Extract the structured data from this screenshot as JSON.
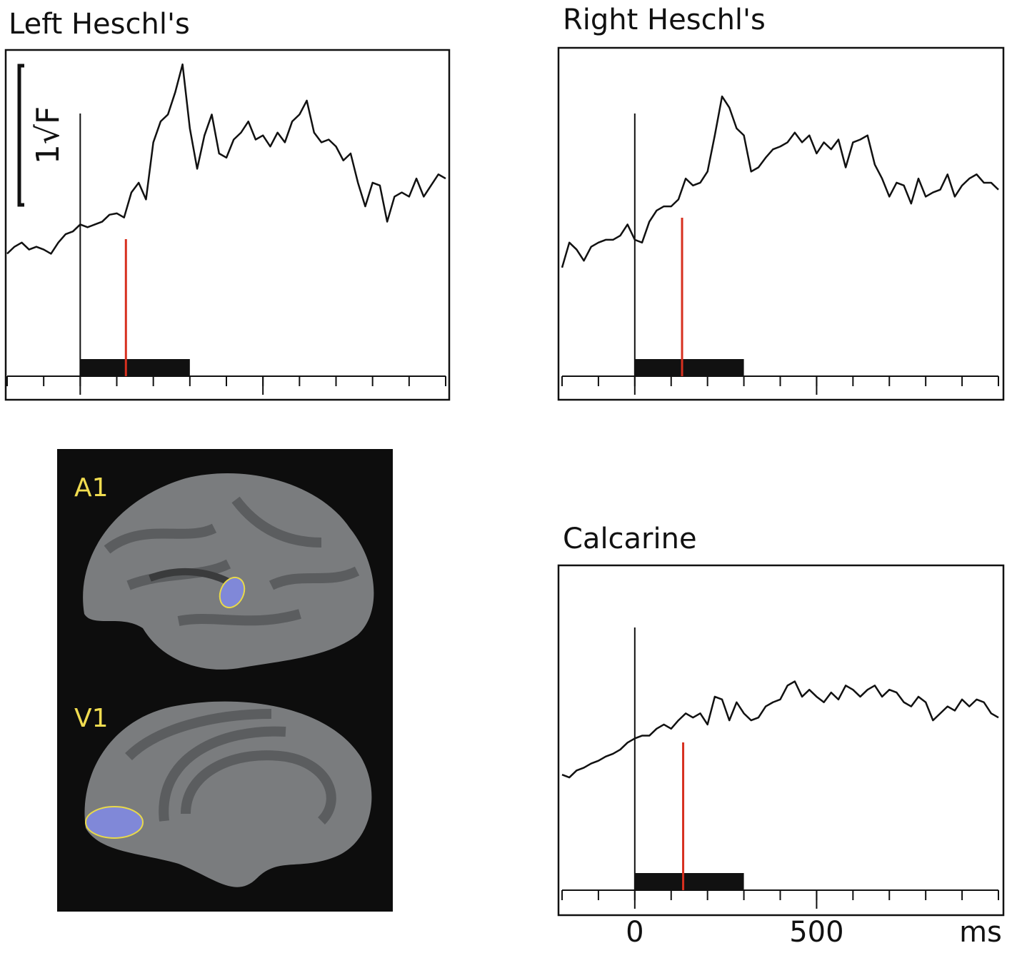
{
  "chart_data": [
    {
      "type": "line",
      "title": "Left Heschl's",
      "x": [
        -200,
        -180,
        -160,
        -140,
        -120,
        -100,
        -80,
        -60,
        -40,
        -20,
        0,
        20,
        40,
        60,
        80,
        100,
        120,
        140,
        160,
        180,
        200,
        220,
        240,
        260,
        280,
        300,
        320,
        340,
        360,
        380,
        400,
        420,
        440,
        460,
        480,
        500,
        520,
        540,
        560,
        580,
        600,
        620,
        640,
        660,
        680,
        700,
        720,
        740,
        760,
        780,
        800,
        820,
        840,
        860,
        880,
        900,
        920,
        940,
        960,
        980,
        1000
      ],
      "series": [
        {
          "color": "#111111",
          "values": [
            0.88,
            0.93,
            0.96,
            0.91,
            0.93,
            0.91,
            0.88,
            0.96,
            1.02,
            1.04,
            1.09,
            1.07,
            1.09,
            1.11,
            1.16,
            1.17,
            1.14,
            1.32,
            1.39,
            1.27,
            1.68,
            1.83,
            1.88,
            2.04,
            2.24,
            1.78,
            1.49,
            1.73,
            1.88,
            1.6,
            1.57,
            1.7,
            1.75,
            1.83,
            1.7,
            1.73,
            1.65,
            1.75,
            1.68,
            1.83,
            1.88,
            1.98,
            1.75,
            1.68,
            1.7,
            1.65,
            1.55,
            1.6,
            1.39,
            1.22,
            1.39,
            1.37,
            1.11,
            1.29,
            1.32,
            1.29,
            1.42,
            1.29,
            1.37,
            1.45,
            1.42
          ]
        }
      ],
      "xlim": [
        -200,
        1000
      ],
      "ylim": [
        0,
        2.34
      ],
      "xticks": [
        -200,
        -100,
        0,
        100,
        200,
        300,
        400,
        500,
        600,
        700,
        800,
        900,
        1000
      ],
      "major_xticks": [
        0,
        500
      ],
      "major_tick_labels": false,
      "stimulus": [
        0,
        300
      ],
      "marker": 125,
      "marker_color": "#d7301f",
      "scale_bar": {
        "value": 1,
        "label": "1√F"
      }
    },
    {
      "type": "line",
      "title": "Right Heschl's",
      "x": [
        -200,
        -180,
        -160,
        -140,
        -120,
        -100,
        -80,
        -60,
        -40,
        -20,
        0,
        20,
        40,
        60,
        80,
        100,
        120,
        140,
        160,
        180,
        200,
        220,
        240,
        260,
        280,
        300,
        320,
        340,
        360,
        380,
        400,
        420,
        440,
        460,
        480,
        500,
        520,
        540,
        560,
        580,
        600,
        620,
        640,
        660,
        680,
        700,
        720,
        740,
        760,
        780,
        800,
        820,
        840,
        860,
        880,
        900,
        920,
        940,
        960,
        980,
        1000
      ],
      "series": [
        {
          "color": "#111111",
          "values": [
            0.78,
            0.96,
            0.91,
            0.83,
            0.93,
            0.96,
            0.98,
            0.98,
            1.01,
            1.09,
            0.98,
            0.96,
            1.11,
            1.19,
            1.22,
            1.22,
            1.27,
            1.42,
            1.37,
            1.39,
            1.47,
            1.73,
            2.01,
            1.93,
            1.78,
            1.73,
            1.47,
            1.5,
            1.57,
            1.63,
            1.65,
            1.68,
            1.75,
            1.68,
            1.73,
            1.6,
            1.68,
            1.63,
            1.7,
            1.5,
            1.68,
            1.7,
            1.73,
            1.52,
            1.42,
            1.29,
            1.39,
            1.37,
            1.24,
            1.42,
            1.29,
            1.32,
            1.34,
            1.45,
            1.29,
            1.37,
            1.42,
            1.45,
            1.39,
            1.39,
            1.34
          ]
        }
      ],
      "xlim": [
        -200,
        1000
      ],
      "ylim": [
        0,
        2.34
      ],
      "xticks": [
        -200,
        -100,
        0,
        100,
        200,
        300,
        400,
        500,
        600,
        700,
        800,
        900,
        1000
      ],
      "major_xticks": [
        0,
        500
      ],
      "major_tick_labels": false,
      "stimulus": [
        0,
        300
      ],
      "marker": 130,
      "marker_color": "#d7301f"
    },
    {
      "type": "line",
      "title": "Calcarine",
      "x": [
        -200,
        -180,
        -160,
        -140,
        -120,
        -100,
        -80,
        -60,
        -40,
        -20,
        0,
        20,
        40,
        60,
        80,
        100,
        120,
        140,
        160,
        180,
        200,
        220,
        240,
        260,
        280,
        300,
        320,
        340,
        360,
        380,
        400,
        420,
        440,
        460,
        480,
        500,
        520,
        540,
        560,
        580,
        600,
        620,
        640,
        660,
        680,
        700,
        720,
        740,
        760,
        780,
        800,
        820,
        840,
        860,
        880,
        900,
        920,
        940,
        960,
        980,
        1000
      ],
      "series": [
        {
          "color": "#111111",
          "values": [
            0.83,
            0.81,
            0.86,
            0.88,
            0.91,
            0.93,
            0.96,
            0.98,
            1.01,
            1.06,
            1.09,
            1.11,
            1.11,
            1.16,
            1.19,
            1.16,
            1.22,
            1.27,
            1.24,
            1.27,
            1.19,
            1.39,
            1.37,
            1.22,
            1.35,
            1.27,
            1.22,
            1.24,
            1.32,
            1.35,
            1.37,
            1.47,
            1.5,
            1.39,
            1.44,
            1.39,
            1.35,
            1.42,
            1.37,
            1.47,
            1.44,
            1.39,
            1.44,
            1.47,
            1.39,
            1.44,
            1.42,
            1.35,
            1.32,
            1.39,
            1.35,
            1.22,
            1.27,
            1.32,
            1.29,
            1.37,
            1.32,
            1.37,
            1.35,
            1.27,
            1.24
          ]
        }
      ],
      "xlim": [
        -200,
        1000
      ],
      "ylim": [
        0,
        2.34
      ],
      "xticks": [
        -200,
        -100,
        0,
        100,
        200,
        300,
        400,
        500,
        600,
        700,
        800,
        900,
        1000
      ],
      "major_xticks": [
        0,
        500
      ],
      "major_tick_labels": true,
      "xlabel": "ms",
      "stimulus": [
        0,
        300
      ],
      "marker": 133,
      "marker_color": "#d7301f"
    }
  ],
  "brain_image": {
    "labels": [
      "A1",
      "V1"
    ]
  }
}
